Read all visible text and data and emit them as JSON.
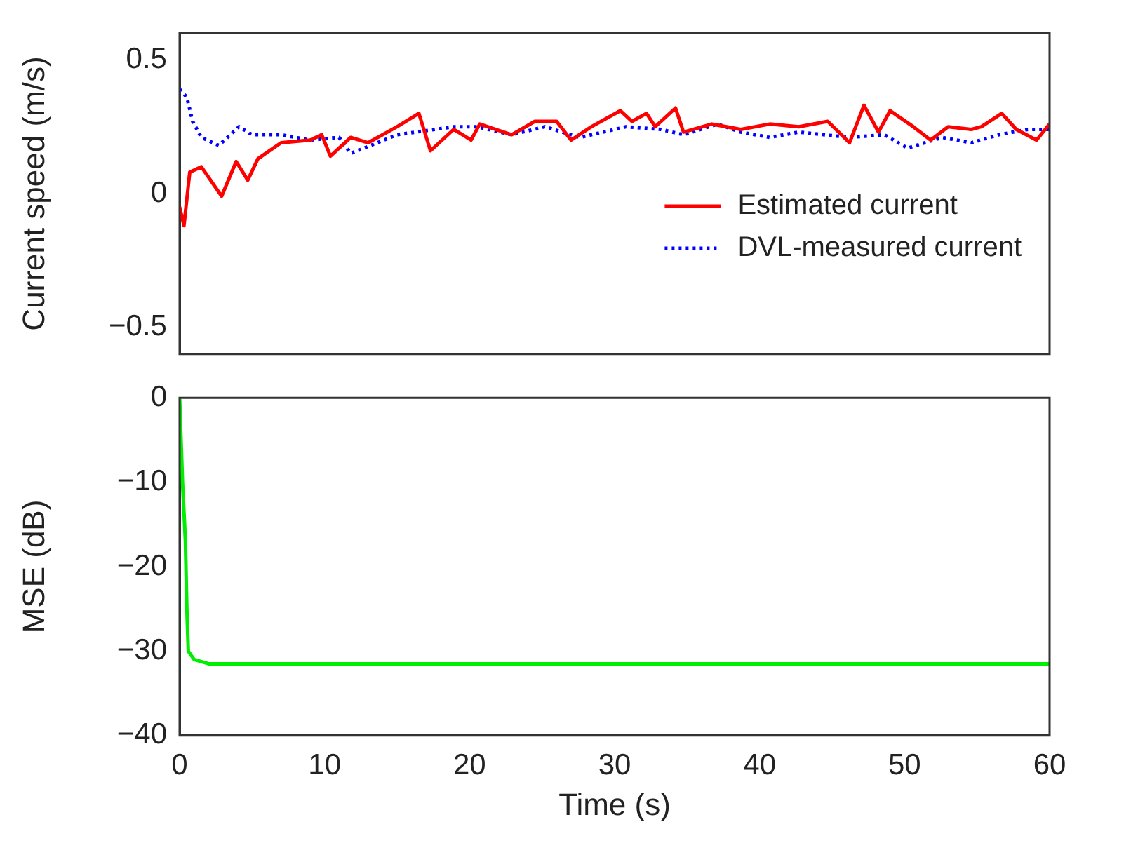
{
  "chart_data": [
    {
      "type": "line",
      "ylabel": "Current speed (m/s)",
      "xlim": [
        0,
        60
      ],
      "xticks": [
        0,
        10,
        20,
        30,
        40,
        50,
        60
      ],
      "ylim": [
        -0.6,
        0.6
      ],
      "yticks": [
        -0.5,
        0,
        0.5
      ],
      "tick_labels": "y",
      "legend": "right",
      "grid": false,
      "series": [
        {
          "name": "Estimated current",
          "color": "#ff0000",
          "line_style": "solid",
          "x": [
            0,
            0.3,
            0.7,
            1.5,
            2.9,
            3.9,
            4.7,
            5.4,
            7.0,
            9.0,
            9.8,
            10.4,
            11.8,
            13.0,
            15.0,
            16.5,
            17.3,
            18.9,
            20.1,
            20.7,
            22.9,
            24.5,
            26.0,
            27.0,
            28.4,
            30.4,
            31.2,
            32.2,
            32.8,
            34.2,
            34.75,
            36.7,
            38.7,
            40.7,
            42.7,
            44.7,
            46.2,
            47.2,
            48.2,
            49.0,
            50.6,
            51.8,
            53.0,
            54.6,
            55.3,
            56.7,
            57.7,
            59.1,
            60
          ],
          "values": [
            -0.05,
            -0.12,
            0.08,
            0.1,
            -0.01,
            0.12,
            0.05,
            0.13,
            0.19,
            0.2,
            0.22,
            0.14,
            0.21,
            0.19,
            0.25,
            0.3,
            0.16,
            0.24,
            0.2,
            0.26,
            0.22,
            0.27,
            0.27,
            0.2,
            0.25,
            0.31,
            0.27,
            0.3,
            0.25,
            0.32,
            0.23,
            0.26,
            0.24,
            0.26,
            0.25,
            0.27,
            0.19,
            0.33,
            0.23,
            0.31,
            0.25,
            0.2,
            0.25,
            0.24,
            0.25,
            0.3,
            0.24,
            0.2,
            0.26
          ]
        },
        {
          "name": "DVL-measured current",
          "color": "#0000ff",
          "line_style": "dotted",
          "x": [
            0,
            0.5,
            0.9,
            1.5,
            2.7,
            4.1,
            5.0,
            7.0,
            9.0,
            11.0,
            11.8,
            15.0,
            18.9,
            20.5,
            22.9,
            25.2,
            27.6,
            30.8,
            33.2,
            34.75,
            37.1,
            38.7,
            40.7,
            42.7,
            46.2,
            48.6,
            50.2,
            52.6,
            54.6,
            56.5,
            58.5,
            60
          ],
          "values": [
            0.39,
            0.36,
            0.27,
            0.21,
            0.18,
            0.25,
            0.22,
            0.22,
            0.2,
            0.21,
            0.15,
            0.22,
            0.25,
            0.25,
            0.22,
            0.25,
            0.21,
            0.25,
            0.24,
            0.22,
            0.26,
            0.23,
            0.21,
            0.23,
            0.21,
            0.22,
            0.17,
            0.21,
            0.19,
            0.22,
            0.24,
            0.24
          ]
        }
      ]
    },
    {
      "type": "line",
      "xlabel": "Time (s)",
      "ylabel": "MSE (dB)",
      "xlim": [
        0,
        60
      ],
      "xticks": [
        0,
        10,
        20,
        30,
        40,
        50,
        60
      ],
      "ylim": [
        -40,
        0
      ],
      "yticks": [
        -40,
        -30,
        -20,
        -10,
        0
      ],
      "grid": false,
      "series": [
        {
          "color": "#00ee00",
          "line_style": "solid",
          "x": [
            0,
            0.2,
            0.4,
            0.5,
            0.6,
            1,
            2,
            60
          ],
          "values": [
            0,
            -10,
            -17,
            -25,
            -30,
            -31,
            -31.5,
            -31.5
          ]
        }
      ]
    }
  ]
}
